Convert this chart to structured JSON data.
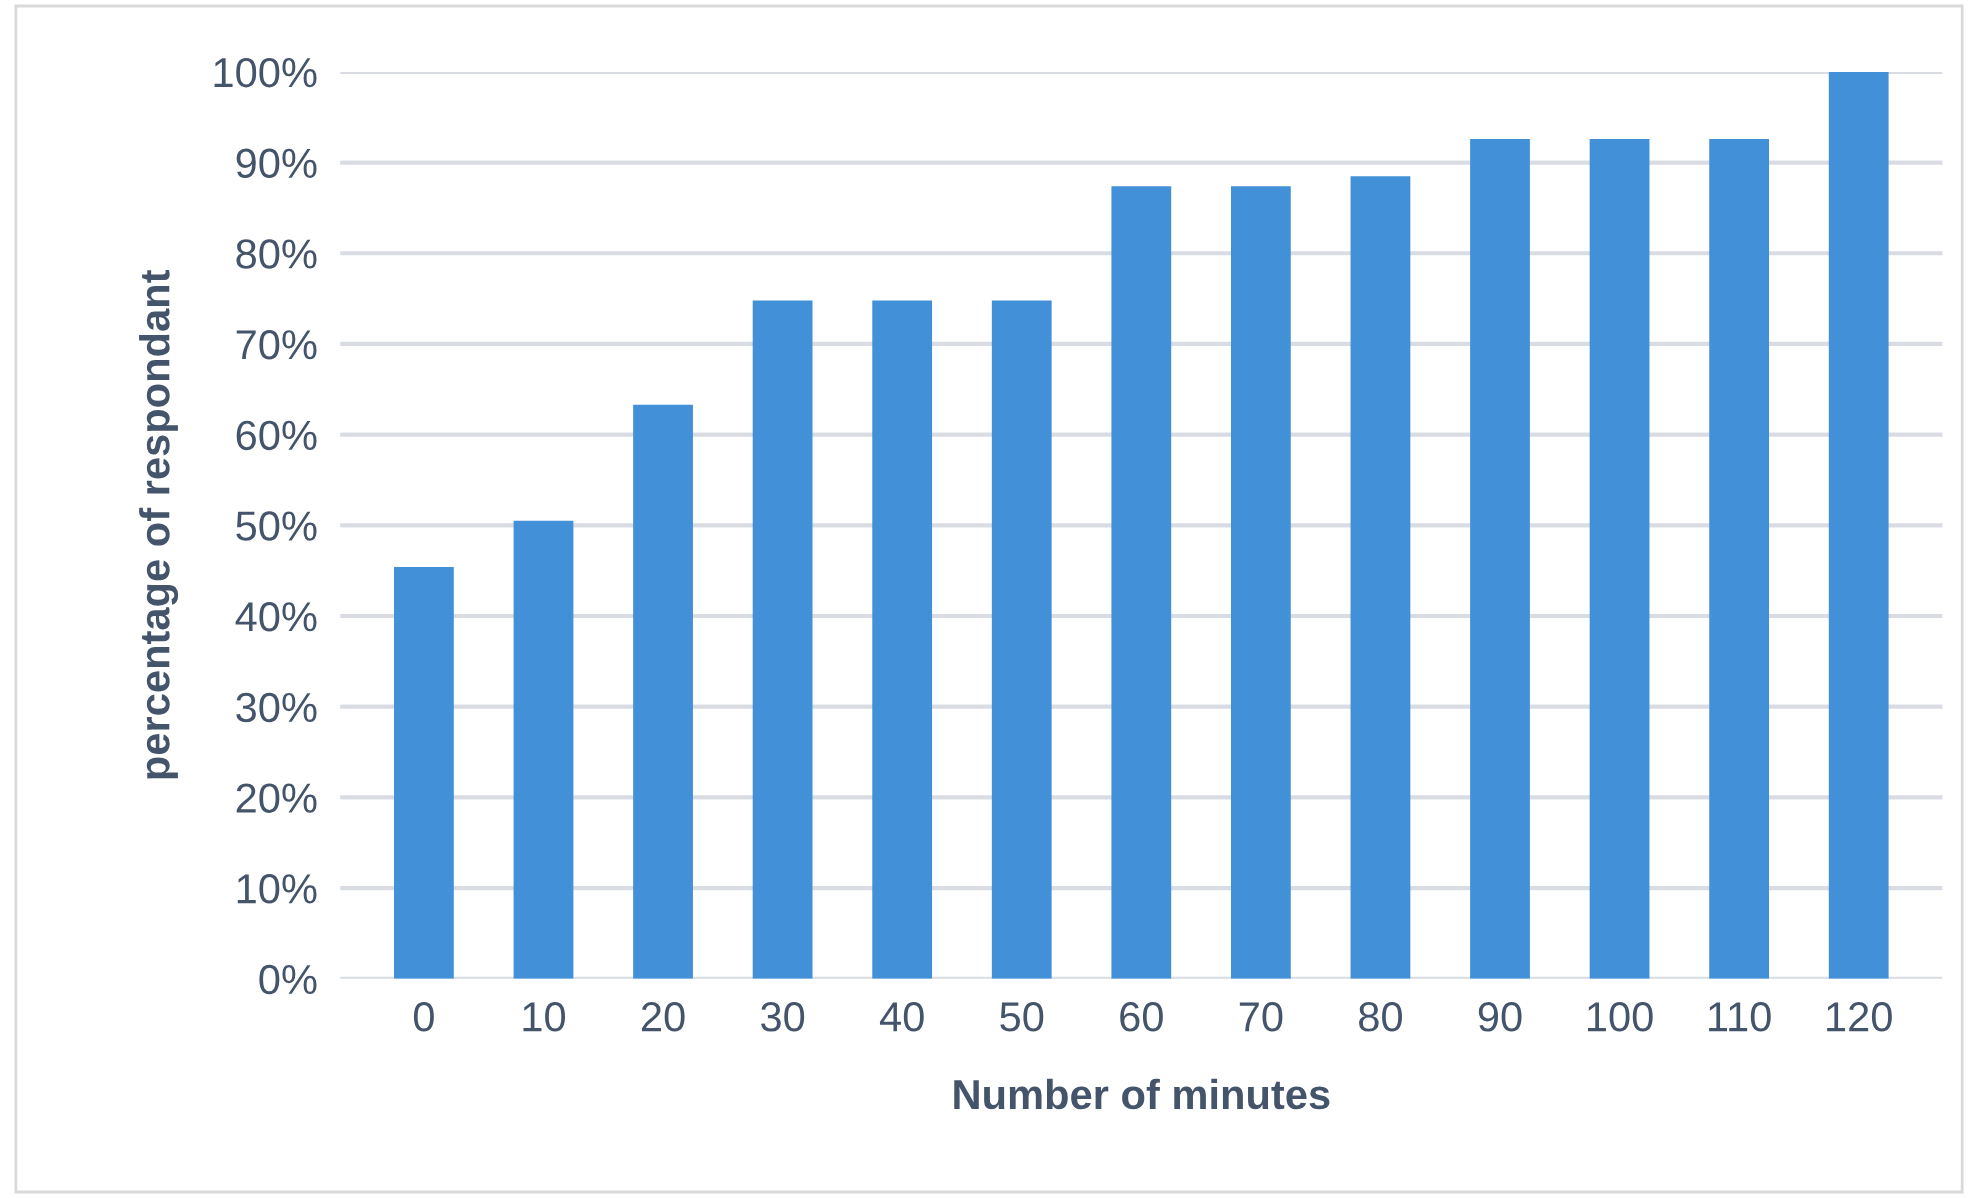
{
  "chart_data": {
    "type": "bar",
    "xlabel": "Number of minutes",
    "ylabel": "percentage of respondant",
    "categories": [
      "0",
      "10",
      "20",
      "30",
      "40",
      "50",
      "60",
      "70",
      "80",
      "90",
      "100",
      "110",
      "120"
    ],
    "values": [
      45.4,
      50.5,
      63.3,
      74.8,
      74.8,
      74.8,
      87.4,
      87.4,
      88.5,
      92.6,
      92.6,
      92.6,
      100
    ],
    "color": "#4190d8",
    "ylim": [
      0,
      100
    ],
    "yticks": [
      {
        "value": 0,
        "label": "0%"
      },
      {
        "value": 10,
        "label": "10%"
      },
      {
        "value": 20,
        "label": "20%"
      },
      {
        "value": 30,
        "label": "30%"
      },
      {
        "value": 40,
        "label": "40%"
      },
      {
        "value": 50,
        "label": "50%"
      },
      {
        "value": 60,
        "label": "60%"
      },
      {
        "value": 70,
        "label": "70%"
      },
      {
        "value": 80,
        "label": "80%"
      },
      {
        "value": 90,
        "label": "90%"
      },
      {
        "value": 100,
        "label": "100%"
      }
    ],
    "grid": "y"
  }
}
